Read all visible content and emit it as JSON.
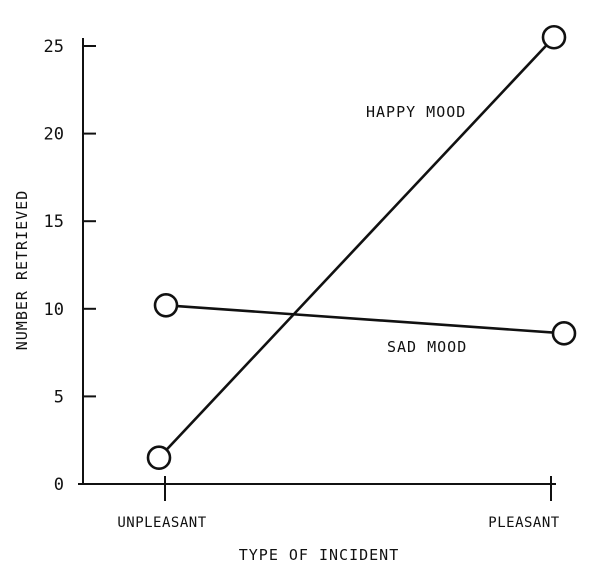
{
  "chart_data": {
    "type": "line",
    "categories": [
      "UNPLEASANT",
      "PLEASANT"
    ],
    "series": [
      {
        "name": "HAPPY MOOD",
        "values": [
          1.5,
          25.5
        ]
      },
      {
        "name": "SAD MOOD",
        "values": [
          10.2,
          8.6
        ]
      }
    ],
    "xlabel": "TYPE OF INCIDENT",
    "ylabel": "NUMBER RETRIEVED",
    "ylim": [
      0,
      25
    ],
    "yticks": [
      0,
      5,
      10,
      15,
      20,
      25
    ],
    "ytick_labels": [
      "0",
      "5",
      "10",
      "15",
      "20",
      "25"
    ],
    "grid": false,
    "legend": "inline labels"
  }
}
